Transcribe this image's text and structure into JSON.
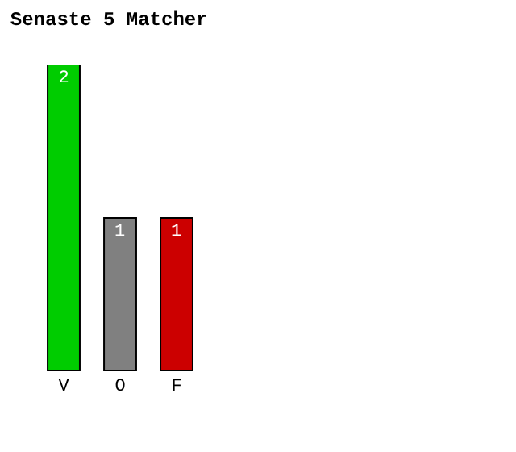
{
  "chart_data": {
    "type": "bar",
    "title": "Senaste 5 Matcher",
    "categories": [
      "V",
      "O",
      "F"
    ],
    "values": [
      2,
      1,
      1
    ],
    "colors": [
      "#00cc00",
      "#808080",
      "#cc0000"
    ],
    "data_labels": true
  }
}
